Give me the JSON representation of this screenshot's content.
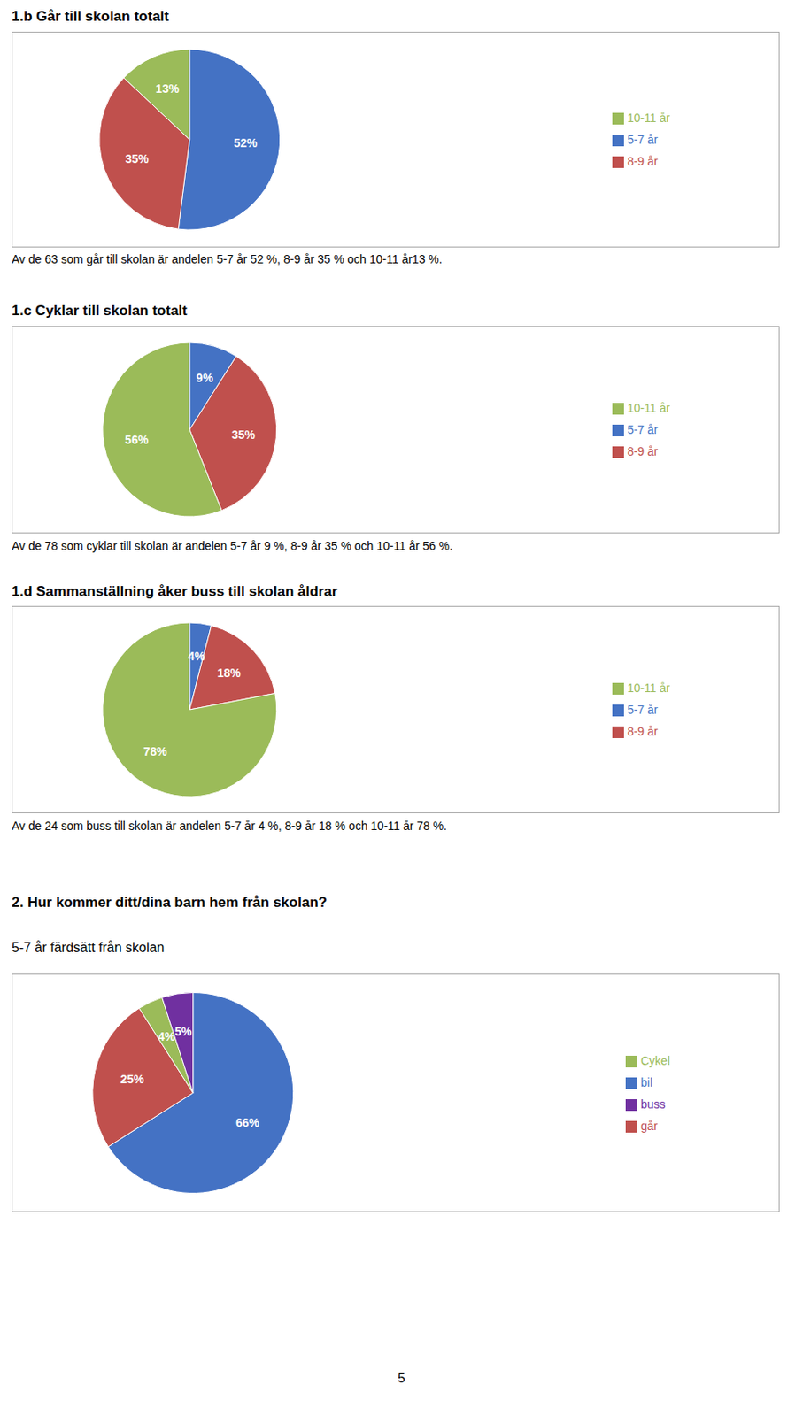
{
  "chart_data": [
    {
      "type": "pie",
      "title": "1.b Går till skolan totalt",
      "categories": [
        "5-7 år",
        "8-9 år",
        "10-11 år"
      ],
      "values": [
        52,
        35,
        13
      ],
      "value_labels": [
        "52%",
        "35%",
        "13%"
      ],
      "colors": [
        "#4472C4",
        "#C0504D",
        "#9BBB59"
      ],
      "data_labels": true,
      "annotations": [
        "Av de 63 som går till skolan är andelen 5-7 år 52 %, 8-9 år 35 % och 10-11 år13 %."
      ]
    },
    {
      "type": "pie",
      "title": "1.c Cyklar till skolan totalt",
      "categories": [
        "5-7 år",
        "8-9 år",
        "10-11 år"
      ],
      "values": [
        9,
        35,
        56
      ],
      "value_labels": [
        "9%",
        "35%",
        "56%"
      ],
      "colors": [
        "#4472C4",
        "#C0504D",
        "#9BBB59"
      ],
      "data_labels": true,
      "annotations": [
        "Av de 78 som cyklar till skolan är andelen 5-7 år 9 %, 8-9 år 35 % och 10-11 år 56 %."
      ]
    },
    {
      "type": "pie",
      "title": "1.d Sammanställning åker buss till skolan åldrar",
      "categories": [
        "5-7 år",
        "8-9 år",
        "10-11 år"
      ],
      "values": [
        4,
        18,
        78
      ],
      "value_labels": [
        "4%",
        "18%",
        "78%"
      ],
      "colors": [
        "#4472C4",
        "#C0504D",
        "#9BBB59"
      ],
      "data_labels": true,
      "annotations": [
        "Av de 24 som buss till skolan är andelen 5-7 år 4 %, 8-9 år 18 % och 10-11 år 78 %."
      ]
    },
    {
      "type": "pie",
      "title": "5-7 år färdsätt från skolan",
      "categories": [
        "bil",
        "går",
        "Cykel",
        "buss"
      ],
      "values": [
        66,
        25,
        4,
        5
      ],
      "value_labels": [
        "66%",
        "25%",
        "4%",
        "5%"
      ],
      "colors": [
        "#4472C4",
        "#C0504D",
        "#9BBB59",
        "#7030A0"
      ],
      "data_labels": true
    }
  ],
  "annotations": [
    "2. Hur kommer ditt/dina barn hem från skolan?",
    "5"
  ]
}
